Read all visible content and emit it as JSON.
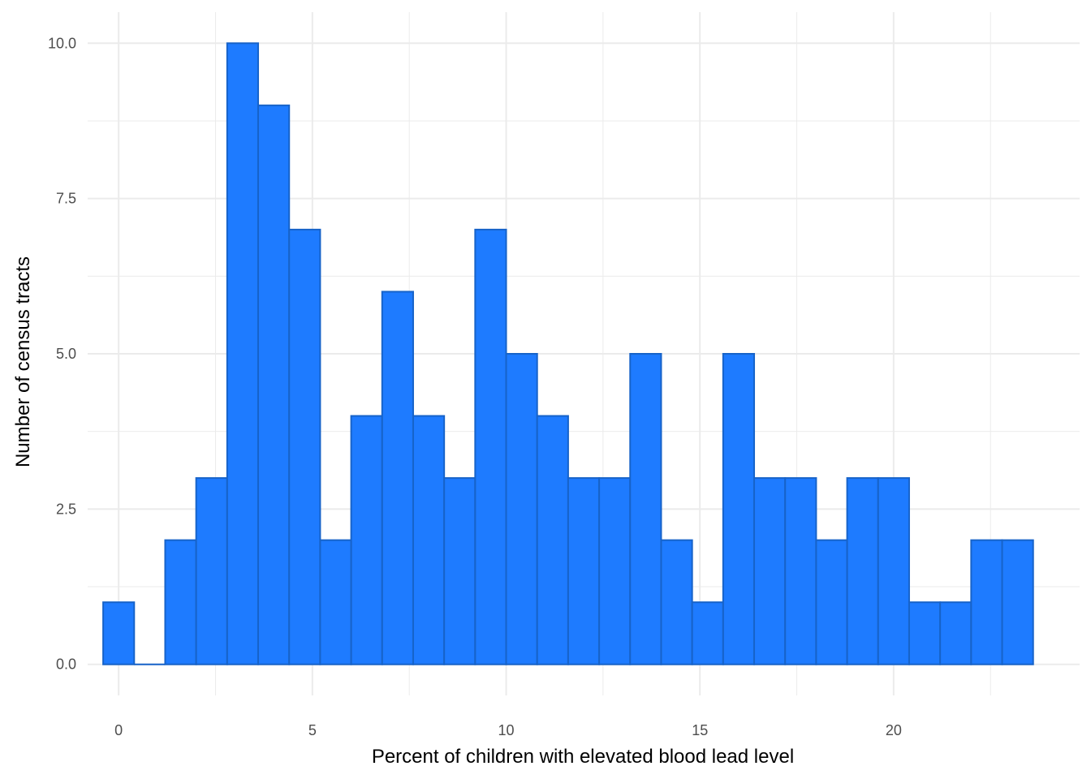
{
  "chart_data": {
    "type": "bar",
    "subtype": "histogram",
    "title": "",
    "xlabel": "Percent of children with elevated blood lead level",
    "ylabel": "Number of census tracts",
    "xlim": [
      -0.8,
      24.8
    ],
    "ylim": [
      -0.5,
      10.5
    ],
    "x_ticks": [
      0,
      5,
      10,
      15,
      20
    ],
    "x_tick_labels": [
      "0",
      "5",
      "10",
      "15",
      "20"
    ],
    "y_ticks": [
      0,
      2.5,
      5,
      7.5,
      10
    ],
    "y_tick_labels": [
      "0.0",
      "2.5",
      "5.0",
      "7.5",
      "10.0"
    ],
    "grid": true,
    "bin_width": 0.8,
    "first_bin_center": 0,
    "values": [
      1,
      0,
      2,
      3,
      10,
      9,
      7,
      2,
      4,
      6,
      4,
      3,
      7,
      5,
      4,
      3,
      3,
      5,
      2,
      1,
      5,
      3,
      3,
      2,
      3,
      3,
      1,
      1,
      2,
      2
    ],
    "fill_color": "#1e7bff",
    "stroke_color": "#1763c9",
    "grid_color": "#ebebeb"
  }
}
